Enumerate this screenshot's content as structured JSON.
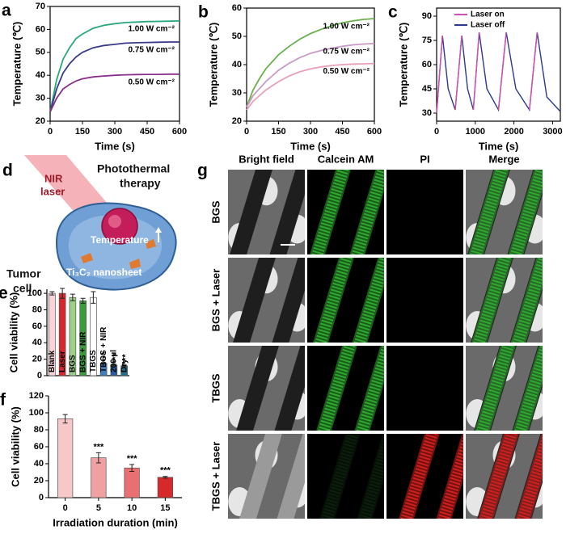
{
  "chart_data": [
    {
      "panel": "a",
      "type": "line",
      "x_label": "Time (s)",
      "y_label": "Temperature (℃)",
      "legend": "inline",
      "x": [
        0,
        30,
        60,
        90,
        120,
        150,
        200,
        250,
        300,
        350,
        400,
        450,
        500,
        550,
        600
      ],
      "xlim": [
        0,
        600
      ],
      "xticks": [
        0,
        150,
        300,
        450,
        600
      ],
      "ylim": [
        20,
        70
      ],
      "yticks": [
        20,
        30,
        40,
        50,
        60,
        70
      ],
      "series": [
        {
          "name": "1.00 W cm⁻²",
          "color": "#2aa87a",
          "values": [
            24,
            38,
            47,
            52,
            56,
            58,
            60.5,
            61.8,
            62.5,
            63,
            63.2,
            63.4,
            63.5,
            63.6,
            63.7
          ]
        },
        {
          "name": "0.75 W cm⁻²",
          "color": "#3a3a8c",
          "values": [
            24,
            34,
            41,
            45,
            48,
            50,
            52,
            53,
            53.5,
            54,
            54.2,
            54.3,
            54.4,
            54.5,
            54.5
          ]
        },
        {
          "name": "0.50 W cm⁻²",
          "color": "#8b2f8f",
          "values": [
            24,
            30,
            34,
            36,
            37.5,
            38.5,
            39.3,
            39.7,
            40,
            40.2,
            40.3,
            40.4,
            40.4,
            40.5,
            40.5
          ]
        }
      ]
    },
    {
      "panel": "b",
      "type": "line",
      "x_label": "Time (s)",
      "y_label": "Temperature (℃)",
      "legend": "inline",
      "x": [
        0,
        30,
        60,
        90,
        120,
        150,
        200,
        250,
        300,
        350,
        400,
        450,
        500,
        550,
        600
      ],
      "xlim": [
        0,
        600
      ],
      "xticks": [
        0,
        150,
        300,
        450,
        600
      ],
      "ylim": [
        20,
        60
      ],
      "yticks": [
        20,
        30,
        40,
        50,
        60
      ],
      "series": [
        {
          "name": "1.00 W cm⁻²",
          "color": "#6ab04c",
          "values": [
            25,
            31,
            35,
            38.5,
            41,
            43.5,
            46.5,
            49,
            51,
            52.5,
            53.8,
            54.8,
            55.5,
            56,
            56.3
          ]
        },
        {
          "name": "0.75 W cm⁻²",
          "color": "#c89ac8",
          "values": [
            25,
            29,
            31.5,
            34,
            36,
            38,
            40.5,
            42.5,
            44,
            45,
            45.8,
            46.5,
            47,
            47.3,
            47.5
          ]
        },
        {
          "name": "0.50 W cm⁻²",
          "color": "#e8a0b8",
          "values": [
            24,
            27,
            29,
            31,
            32.5,
            34,
            36,
            37.5,
            38.5,
            39.2,
            39.7,
            40,
            40.2,
            40.3,
            40.4
          ]
        }
      ]
    },
    {
      "panel": "c",
      "type": "line",
      "x_label": "Time (s)",
      "y_label": "Temperature (℃)",
      "legend": "upper center",
      "x": [
        0,
        150,
        300,
        480,
        650,
        800,
        950,
        1100,
        1300,
        1600,
        1800,
        2050,
        2400,
        2600,
        2850,
        3200
      ],
      "xlim": [
        0,
        3200
      ],
      "xticks": [
        0,
        1000,
        2000,
        3000
      ],
      "ylim": [
        25,
        95
      ],
      "yticks": [
        30,
        45,
        60,
        75,
        90
      ],
      "series": [
        {
          "name": "Laser on",
          "color": "#d44fb0",
          "values": [
            30,
            78,
            null,
            32,
            78,
            null,
            32,
            80,
            null,
            32,
            80,
            null,
            32,
            80,
            null,
            null
          ]
        },
        {
          "name": "Laser off",
          "color": "#2e3a8c",
          "values": [
            30,
            78,
            45,
            32,
            78,
            45,
            32,
            80,
            45,
            32,
            80,
            45,
            32,
            80,
            40,
            31
          ]
        }
      ]
    },
    {
      "panel": "e",
      "type": "bar",
      "y_label": "Cell viability (%)",
      "labels_inside": true,
      "categories": [
        "Blank",
        "Laser",
        "BGS",
        "BGS + NIR",
        "TBGS",
        "TBGS + NIR",
        "200 µl",
        "Dry"
      ],
      "values": [
        100,
        100,
        95,
        91,
        95,
        15,
        13,
        12
      ],
      "errors": [
        2,
        6,
        4,
        3,
        7,
        1,
        1,
        1
      ],
      "significance": [
        null,
        null,
        null,
        null,
        null,
        "***",
        "***",
        "***"
      ],
      "colors": [
        "#f9d5d9",
        "#d9262c",
        "#9fd089",
        "#3a9b3a",
        "#ffffff",
        "#3d7fc0",
        "#2a5d9f",
        "#1f6f8b"
      ],
      "ylim": [
        0,
        105
      ],
      "yticks": [
        0,
        20,
        40,
        60,
        80,
        100
      ]
    },
    {
      "panel": "f",
      "type": "bar",
      "x_label": "Irradiation duration (min)",
      "y_label": "Cell viability (%)",
      "labels_inside": false,
      "categories": [
        "0",
        "5",
        "10",
        "15"
      ],
      "values": [
        93,
        47,
        35,
        24
      ],
      "errors": [
        5,
        6,
        4,
        1
      ],
      "significance": [
        null,
        "***",
        "***",
        "***"
      ],
      "colors": [
        "#f7c8c8",
        "#f0a0a0",
        "#e87070",
        "#d62a2a"
      ],
      "ylim": [
        0,
        120
      ],
      "yticks": [
        0,
        20,
        40,
        60,
        80,
        100,
        120
      ]
    }
  ],
  "panel_d": {
    "label": "d",
    "beam": [
      "NIR",
      "laser"
    ],
    "therapy": [
      "Photothermal",
      "therapy"
    ],
    "temperature": "Temperature",
    "nanosheet": "Ti₃C₂ nanosheet",
    "cell": [
      "Tumor",
      "cell"
    ]
  },
  "panel_g": {
    "label": "g",
    "columns": [
      "Bright field",
      "Calcein AM",
      "PI",
      "Merge"
    ],
    "rows": [
      "BGS",
      "BGS + Laser",
      "TBGS",
      "TBGS + Laser"
    ]
  }
}
